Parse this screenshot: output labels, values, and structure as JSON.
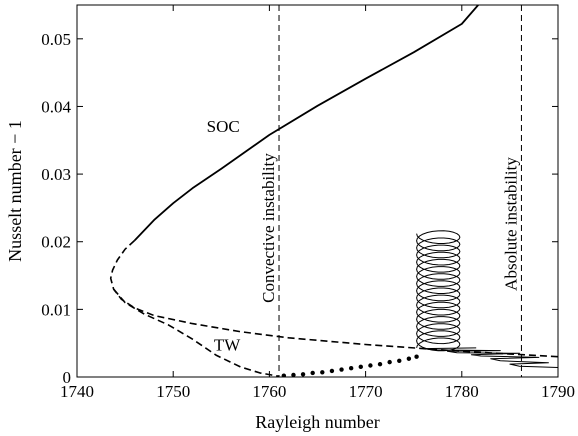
{
  "chart_data": {
    "type": "line",
    "xlabel": "Rayleigh number",
    "ylabel": "Nusselt number − 1",
    "xlim": [
      1740,
      1790
    ],
    "ylim": [
      0,
      0.055
    ],
    "xticks": [
      1740,
      1750,
      1760,
      1770,
      1780,
      1790
    ],
    "xtick_labels": [
      "1740",
      "1750",
      "1760",
      "1770",
      "1780",
      "1790"
    ],
    "yticks": [
      0,
      0.01,
      0.02,
      0.03,
      0.04,
      0.05
    ],
    "ytick_labels": [
      "0",
      "0.01",
      "0.02",
      "0.03",
      "0.04",
      "0.05"
    ],
    "grid": false,
    "line_color": "#000000",
    "series": [
      {
        "name": "SOC",
        "style": "solid",
        "x": [
          1746.0,
          1748.0,
          1750.0,
          1752.0,
          1755.0,
          1760.0,
          1765.0,
          1770.0,
          1775.0,
          1780.0,
          1781.7
        ],
        "y": [
          0.0202,
          0.0232,
          0.0257,
          0.0279,
          0.0308,
          0.0358,
          0.0401,
          0.0441,
          0.048,
          0.0522,
          0.055
        ]
      },
      {
        "name": "",
        "style": "dashed",
        "x": [
          1746.0,
          1745.0,
          1744.2,
          1743.7,
          1743.5,
          1743.8,
          1744.6,
          1746.0,
          1748.0,
          1752.0,
          1757.0,
          1762.0,
          1770.0,
          1780.0,
          1790.0
        ],
        "y": [
          0.0202,
          0.0189,
          0.0173,
          0.0158,
          0.0146,
          0.013,
          0.0115,
          0.0102,
          0.0091,
          0.0079,
          0.0067,
          0.0058,
          0.0048,
          0.0038,
          0.003
        ]
      },
      {
        "name": "TW",
        "style": "dashed",
        "x": [
          1743.8,
          1745.0,
          1747.0,
          1749.5,
          1752.0,
          1754.5,
          1757.0,
          1759.0,
          1761.0
        ],
        "y": [
          0.013,
          0.011,
          0.0093,
          0.0077,
          0.0056,
          0.0032,
          0.0015,
          0.0006,
          0.0001
        ]
      },
      {
        "name": "",
        "style": "dotted",
        "x": [
          1761.5,
          1762.5,
          1763.5,
          1764.5,
          1765.5,
          1766.5,
          1767.5,
          1768.5,
          1769.5,
          1770.5,
          1771.5,
          1772.5,
          1773.5,
          1774.5,
          1775.3
        ],
        "y": [
          0.0002,
          0.0003,
          0.0004,
          0.0006,
          0.0007,
          0.0009,
          0.0011,
          0.0013,
          0.0015,
          0.0017,
          0.0019,
          0.0022,
          0.0024,
          0.0027,
          0.003
        ]
      },
      {
        "name": "",
        "style": "thin-solid",
        "x": [
          1790.0,
          1786.0,
          1785.0,
          1789.0,
          1784.0,
          1783.0,
          1788.0,
          1782.0,
          1781.0,
          1786.0,
          1779.5,
          1778.5,
          1784.0,
          1777.0,
          1776.0,
          1781.5
        ],
        "y": [
          0.0014,
          0.0016,
          0.0019,
          0.0021,
          0.0024,
          0.0027,
          0.0029,
          0.0031,
          0.0033,
          0.0035,
          0.0036,
          0.0038,
          0.0039,
          0.004,
          0.0042,
          0.0043
        ]
      },
      {
        "name": "",
        "style": "thin-solid-oscillation",
        "x_left": 1775.3,
        "x_right": 1779.8,
        "y_start": 0.0043,
        "y_end": 0.0212,
        "cycles": 16
      }
    ],
    "vlines": [
      {
        "x": 1761,
        "style": "dashed",
        "label": "Convective instability"
      },
      {
        "x": 1786.2,
        "style": "dashed",
        "label": "Absolute instability"
      }
    ],
    "annotations": [
      {
        "text": "SOC",
        "x": 1755.2,
        "y": 0.0362
      },
      {
        "text": "TW",
        "x": 1755.6,
        "y": 0.0039
      }
    ]
  }
}
